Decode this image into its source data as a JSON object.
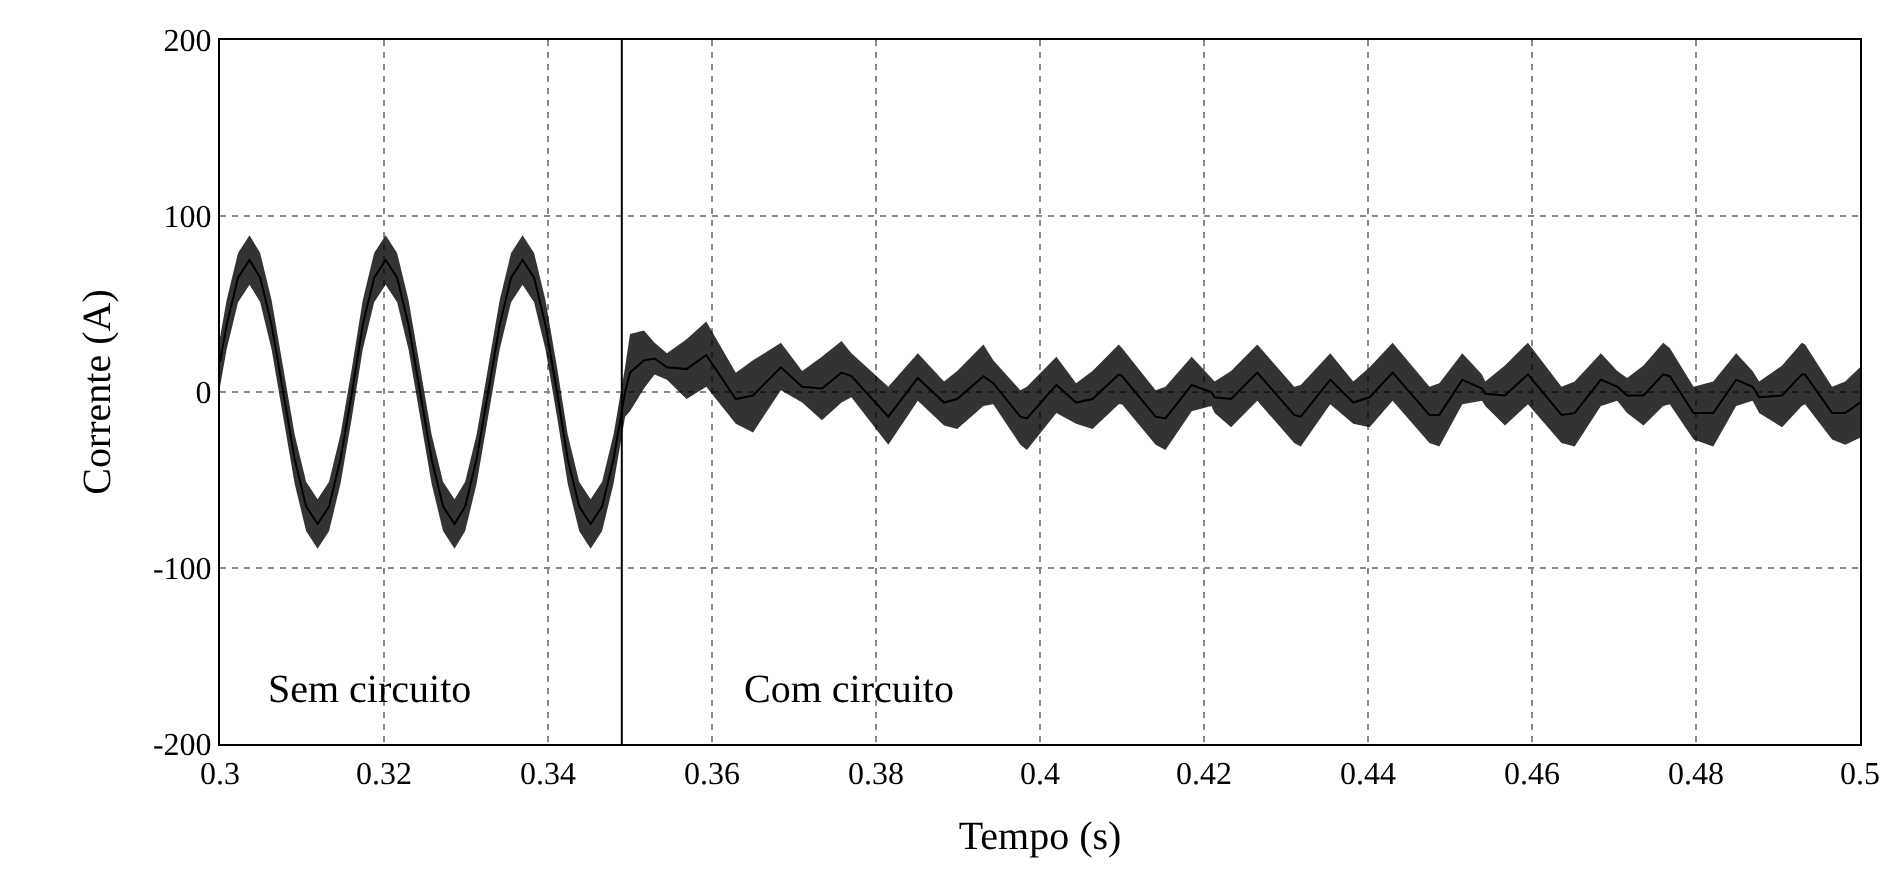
{
  "chart_data": {
    "type": "line",
    "xlabel": "Tempo (s)",
    "ylabel": "Corrente (A)",
    "xlim": [
      0.3,
      0.5
    ],
    "xticks": [
      0.3,
      0.32,
      0.34,
      0.36,
      0.38,
      0.4,
      0.42,
      0.44,
      0.46,
      0.48,
      0.5
    ],
    "ylim": [
      -200,
      200
    ],
    "yticks": [
      -200,
      -100,
      0,
      100,
      200
    ],
    "grid": true,
    "ref_lines": [
      {
        "axis": "x",
        "value": 0.349,
        "color": "#000000",
        "line_style": "solid"
      }
    ],
    "annotations": [
      "Sem circuito",
      "Com circuito"
    ],
    "series": [
      {
        "color": "#000000",
        "x": [
          0.3,
          0.3008,
          0.3022,
          0.3036,
          0.3049,
          0.3063,
          0.3077,
          0.3091,
          0.3105,
          0.3119,
          0.3133,
          0.3147,
          0.3161,
          0.3174,
          0.3188,
          0.3202,
          0.3216,
          0.323,
          0.3244,
          0.3258,
          0.3272,
          0.3286,
          0.3299,
          0.3313,
          0.3327,
          0.3341,
          0.3355,
          0.3369,
          0.3383,
          0.3397,
          0.3411,
          0.3424,
          0.3438,
          0.3452,
          0.3466,
          0.348,
          0.3494,
          0.35,
          0.3517,
          0.353,
          0.3545,
          0.3569,
          0.3593,
          0.3629,
          0.365,
          0.3684,
          0.371,
          0.3734,
          0.3758,
          0.377,
          0.3815,
          0.3851,
          0.3883,
          0.3899,
          0.3931,
          0.3943,
          0.3976,
          0.3984,
          0.402,
          0.4044,
          0.4064,
          0.4096,
          0.41,
          0.4141,
          0.4153,
          0.4185,
          0.4209,
          0.4213,
          0.4233,
          0.4265,
          0.431,
          0.4318,
          0.4354,
          0.4382,
          0.4402,
          0.443,
          0.4475,
          0.4487,
          0.4515,
          0.4539,
          0.4543,
          0.4567,
          0.4595,
          0.4636,
          0.4652,
          0.4684,
          0.4704,
          0.4716,
          0.4736,
          0.476,
          0.4768,
          0.4797,
          0.4821,
          0.4849,
          0.4869,
          0.4877,
          0.4905,
          0.4929,
          0.4933,
          0.4966,
          0.4982,
          0.5
        ],
        "values": [
          17,
          38,
          65,
          75,
          65,
          38,
          0,
          -38,
          -65,
          -75,
          -65,
          -38,
          0,
          38,
          65,
          75,
          65,
          38,
          0,
          -38,
          -65,
          -75,
          -65,
          -38,
          0,
          38,
          65,
          75,
          65,
          38,
          0,
          -38,
          -65,
          -75,
          -65,
          -38,
          0,
          11,
          18,
          19,
          14,
          13,
          21,
          -4,
          -2,
          14,
          3,
          2,
          11,
          9,
          -14,
          8,
          -6,
          -4,
          9,
          5,
          -14,
          -15,
          4,
          -6,
          -4,
          10,
          9,
          -14,
          -15,
          4,
          0,
          -3,
          -4,
          11,
          -13,
          -14,
          7,
          -6,
          -3,
          11,
          -13,
          -13,
          7,
          2,
          -1,
          -2,
          10,
          -13,
          -12,
          7,
          3,
          -2,
          -2,
          10,
          9,
          -12,
          -12,
          7,
          3,
          -3,
          -2,
          10,
          10,
          -12,
          -12,
          -6
        ],
        "lower": [
          3,
          24,
          51,
          61,
          51,
          24,
          -14,
          -52,
          -79,
          -89,
          -79,
          -52,
          -14,
          24,
          51,
          61,
          51,
          24,
          -14,
          -52,
          -79,
          -89,
          -79,
          -52,
          -14,
          24,
          51,
          61,
          51,
          24,
          -14,
          -52,
          -79,
          -89,
          -79,
          -52,
          -14,
          -11,
          2,
          10,
          7,
          -4,
          3,
          -18,
          -23,
          1,
          -6,
          -16,
          -6,
          -3,
          -30,
          -5,
          -19,
          -21,
          -8,
          -7,
          -30,
          -33,
          -12,
          -18,
          -21,
          -7,
          -7,
          -30,
          -33,
          -11,
          -8,
          -12,
          -20,
          -5,
          -29,
          -31,
          -7,
          -18,
          -20,
          -5,
          -29,
          -31,
          -7,
          -5,
          -8,
          -19,
          -7,
          -29,
          -31,
          -8,
          -5,
          -12,
          -19,
          -8,
          -7,
          -27,
          -31,
          -8,
          -5,
          -12,
          -20,
          -8,
          -7,
          -27,
          -30,
          -26
        ],
        "upper": [
          31,
          52,
          79,
          89,
          79,
          52,
          14,
          -24,
          -51,
          -61,
          -51,
          -24,
          14,
          52,
          79,
          89,
          79,
          52,
          14,
          -24,
          -51,
          -61,
          -51,
          -24,
          14,
          52,
          79,
          89,
          79,
          52,
          14,
          -24,
          -51,
          -61,
          -51,
          -24,
          14,
          33,
          35,
          28,
          22,
          30,
          40,
          11,
          18,
          28,
          12,
          20,
          29,
          22,
          3,
          22,
          6,
          12,
          27,
          18,
          1,
          3,
          20,
          5,
          12,
          27,
          25,
          1,
          3,
          20,
          8,
          6,
          12,
          27,
          3,
          4,
          22,
          6,
          14,
          28,
          3,
          5,
          22,
          10,
          6,
          15,
          28,
          3,
          6,
          22,
          12,
          8,
          15,
          28,
          25,
          3,
          6,
          22,
          12,
          6,
          15,
          28,
          27,
          3,
          6,
          14
        ]
      }
    ]
  }
}
